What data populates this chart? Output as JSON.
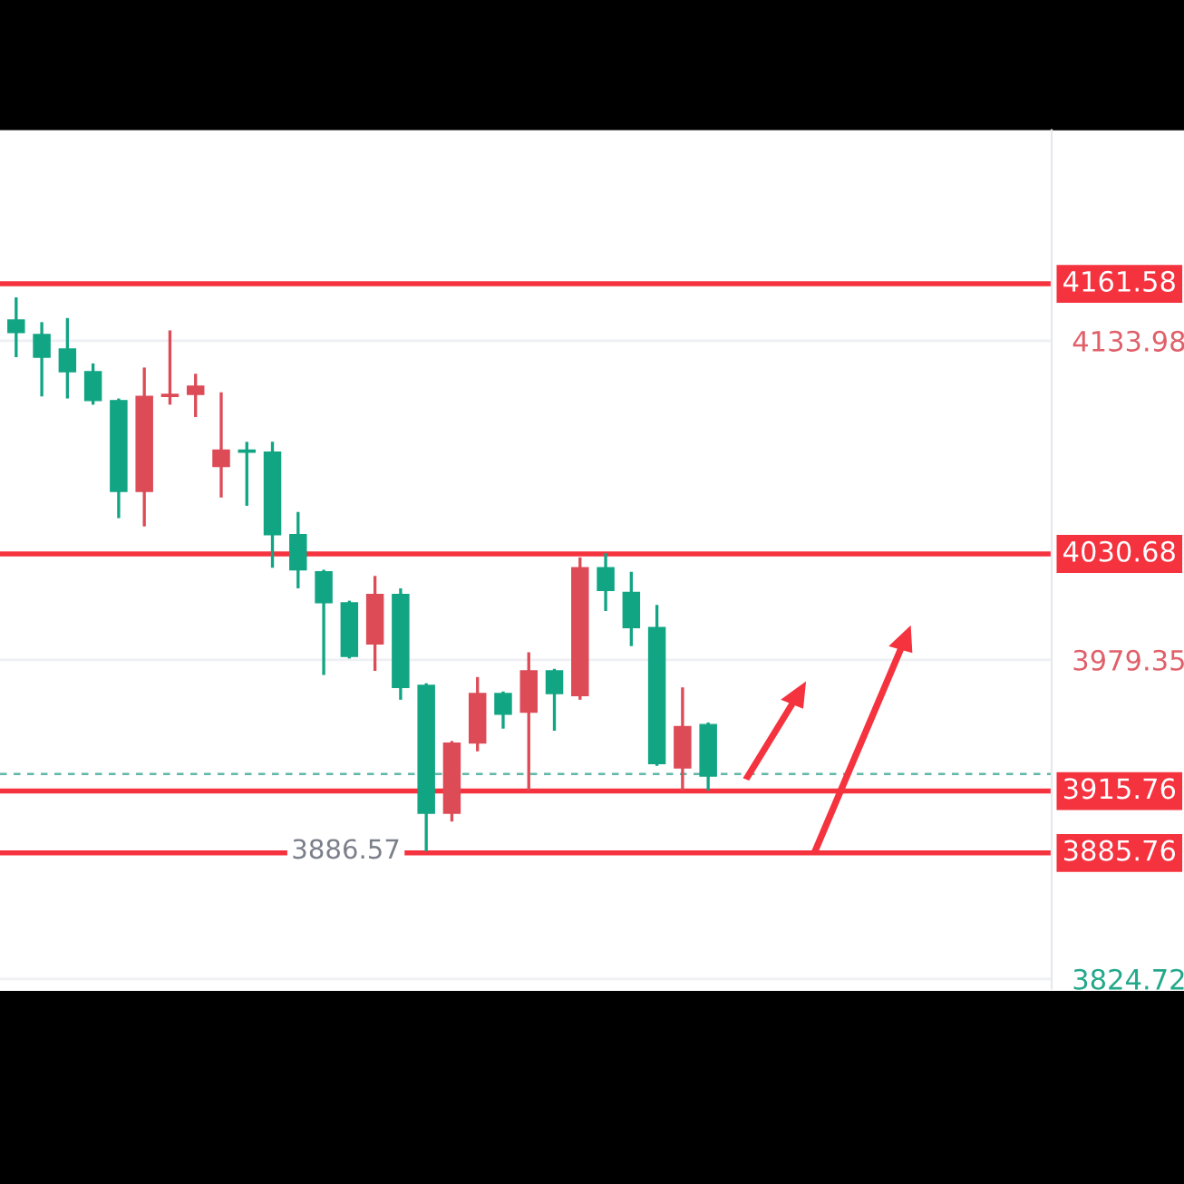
{
  "chart_data": {
    "type": "candlestick",
    "categories": [
      null,
      null,
      null,
      null,
      null,
      null,
      null,
      null,
      null,
      null,
      null,
      null,
      null,
      null,
      null,
      null,
      null,
      null,
      null,
      null,
      null,
      null,
      null,
      null,
      null,
      null,
      null,
      null,
      null,
      null,
      null,
      null,
      null,
      null,
      null,
      null,
      null,
      null,
      null,
      null,
      null
    ],
    "colors": [
      "#12a584",
      "#12a584",
      "#12a584",
      "#12a584",
      "#12a584",
      "#dd4b57",
      "#dd4b57",
      "#dd4b57",
      "#dd4b57",
      "#12a584",
      "#12a584",
      "#12a584",
      "#12a584",
      "#12a584",
      "#dd4b57",
      "#12a584",
      "#12a584",
      "#dd4b57",
      "#dd4b57",
      "#12a584",
      "#dd4b57",
      "#12a584",
      "#dd4b57",
      "#12a584",
      "#12a584",
      "#12a584",
      "#dd4b57",
      "#12a584",
      null,
      null,
      null,
      null,
      null,
      null,
      null,
      null,
      null,
      null,
      null,
      null,
      null
    ],
    "ohlc": [
      [
        4144,
        4155,
        4126,
        4138
      ],
      [
        4137,
        4143,
        4107,
        4126
      ],
      [
        4130,
        4145,
        4106,
        4119
      ],
      [
        4119,
        4123,
        4103,
        4105
      ],
      [
        4105,
        4106,
        4048,
        4061
      ],
      [
        4061,
        4121,
        4044,
        4107
      ],
      [
        4107,
        4139,
        4103,
        4108
      ],
      [
        4108,
        4118,
        4097,
        4112
      ],
      [
        4073,
        4109,
        4058,
        4081
      ],
      [
        4081,
        4085,
        4054,
        4080
      ],
      [
        4080,
        4085,
        4024,
        4040
      ],
      [
        4040,
        4051,
        4014,
        4023
      ],
      [
        4022,
        4023,
        3972,
        4007
      ],
      [
        4007,
        4008,
        3980,
        3981
      ],
      [
        3987,
        4020,
        3974,
        4011
      ],
      [
        4011,
        4014,
        3960,
        3966
      ],
      [
        3967,
        3968,
        3886.57,
        3905
      ],
      [
        3905,
        3940,
        3901,
        3939
      ],
      [
        3939,
        3971,
        3935,
        3963
      ],
      [
        3963,
        3964,
        3946,
        3953
      ],
      [
        3954,
        3983,
        3916,
        3974
      ],
      [
        3974,
        3975,
        3945,
        3963
      ],
      [
        3962,
        4029,
        3960,
        4024
      ],
      [
        4024,
        4031,
        4003,
        4013
      ],
      [
        4012,
        4022,
        3986,
        3995
      ],
      [
        3995,
        4006,
        3928,
        3929
      ],
      [
        3927,
        3966,
        3916,
        3947
      ],
      [
        3948,
        3949,
        3916,
        3923
      ],
      null,
      null,
      null,
      null,
      null,
      null,
      null,
      null,
      null,
      null,
      null,
      null,
      null
    ],
    "ylim": [
      3820,
      4236
    ],
    "yticks": [
      3824.72,
      3979.35,
      4133.98
    ],
    "grid": "y",
    "ref_lines": [
      {
        "axis": "y",
        "value": 4161.58,
        "label": "4161.58",
        "color": "#f5333f"
      },
      {
        "axis": "y",
        "value": 4030.68,
        "label": "4030.68",
        "color": "#f5333f"
      },
      {
        "axis": "y",
        "value": 3915.76,
        "label": "3915.76",
        "color": "#f5333f"
      },
      {
        "axis": "y",
        "value": 3885.76,
        "label": "3885.76",
        "color": "#f5333f"
      },
      {
        "axis": "y",
        "value": 3924,
        "label": null,
        "color": "#5fb8a8",
        "line_style": "dashed"
      }
    ],
    "annotations": [
      {
        "text": "3886.57",
        "y": 3886.57
      }
    ]
  }
}
